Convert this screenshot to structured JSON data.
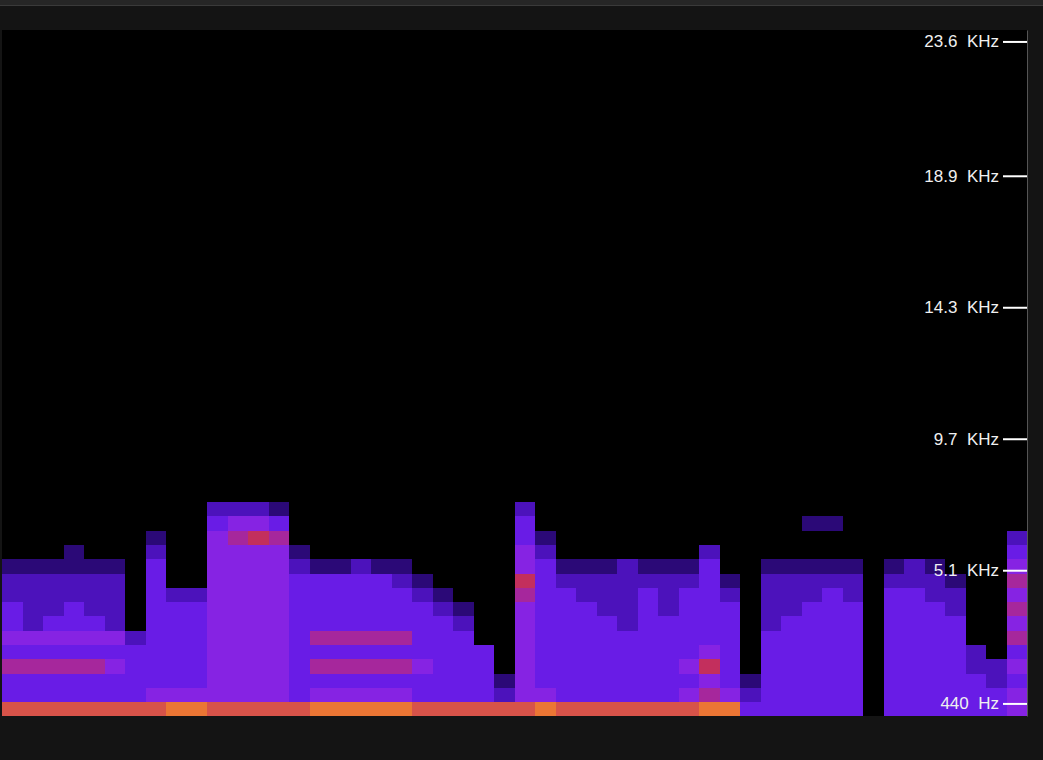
{
  "chart_data": {
    "type": "heatmap",
    "xlim": [
      0,
      50
    ],
    "ylim": [
      0,
      24000
    ],
    "yticks": [
      {
        "value": 23600,
        "label": "23.6  KHz"
      },
      {
        "value": 18900,
        "label": "18.9  KHz"
      },
      {
        "value": 14300,
        "label": "14.3  KHz"
      },
      {
        "value": 9700,
        "label": "9.7  KHz"
      },
      {
        "value": 5100,
        "label": "5.1  KHz"
      },
      {
        "value": 440,
        "label": "440  Hz"
      }
    ],
    "tick_labels": "y",
    "zlim": [
      0,
      9
    ],
    "x_edges": [
      0,
      1,
      2,
      3,
      4,
      5,
      6,
      7,
      8,
      9,
      10,
      11,
      12,
      13,
      14,
      15,
      16,
      17,
      18,
      19,
      20,
      21,
      22,
      23,
      24,
      25,
      26,
      27,
      28,
      29,
      30,
      31,
      32,
      33,
      34,
      35,
      36,
      37,
      38,
      39,
      40,
      41,
      42,
      43,
      44,
      45,
      46,
      47,
      48,
      49,
      50
    ],
    "y_edges": [
      0,
      500,
      1000,
      1500,
      2000,
      2500,
      3000,
      3500,
      4000,
      4500,
      5000,
      5500,
      6000,
      6500,
      7000,
      7500
    ],
    "values": [
      [
        7,
        7,
        7,
        7,
        7,
        7,
        7,
        7,
        8,
        8,
        7,
        7,
        7,
        7,
        7,
        8,
        8,
        8,
        8,
        8,
        7,
        7,
        7,
        7,
        7,
        7,
        8,
        7,
        7,
        7,
        7,
        7,
        7,
        7,
        8,
        8,
        3,
        3,
        3,
        3,
        3,
        3,
        0,
        3,
        3,
        3,
        3,
        3,
        3,
        4
      ],
      [
        3,
        3,
        3,
        3,
        3,
        3,
        3,
        4,
        4,
        4,
        4,
        4,
        4,
        4,
        3,
        4,
        4,
        4,
        4,
        4,
        3,
        3,
        3,
        3,
        2,
        4,
        4,
        3,
        3,
        3,
        3,
        3,
        3,
        4,
        5,
        4,
        2,
        3,
        3,
        3,
        3,
        3,
        0,
        3,
        3,
        3,
        3,
        3,
        3,
        4
      ],
      [
        3,
        3,
        3,
        3,
        3,
        3,
        3,
        3,
        3,
        3,
        4,
        4,
        4,
        4,
        3,
        3,
        3,
        3,
        3,
        3,
        3,
        3,
        3,
        3,
        1,
        4,
        3,
        3,
        3,
        3,
        3,
        3,
        3,
        3,
        4,
        3,
        1,
        3,
        3,
        3,
        3,
        3,
        0,
        3,
        3,
        3,
        3,
        3,
        2,
        3
      ],
      [
        5,
        5,
        5,
        5,
        5,
        4,
        3,
        3,
        3,
        3,
        4,
        4,
        4,
        4,
        3,
        5,
        5,
        5,
        5,
        5,
        4,
        3,
        3,
        3,
        0,
        4,
        3,
        3,
        3,
        3,
        3,
        3,
        3,
        4,
        6,
        3,
        0,
        3,
        3,
        3,
        3,
        3,
        0,
        3,
        3,
        3,
        3,
        2,
        2,
        4
      ],
      [
        3,
        3,
        3,
        3,
        3,
        3,
        3,
        3,
        3,
        3,
        4,
        4,
        4,
        4,
        3,
        3,
        3,
        3,
        3,
        3,
        3,
        3,
        3,
        3,
        0,
        4,
        3,
        3,
        3,
        3,
        3,
        3,
        3,
        3,
        4,
        3,
        0,
        3,
        3,
        3,
        3,
        3,
        0,
        3,
        3,
        3,
        3,
        2,
        0,
        3
      ],
      [
        4,
        4,
        4,
        4,
        4,
        4,
        2,
        3,
        3,
        3,
        4,
        4,
        4,
        4,
        3,
        5,
        5,
        5,
        5,
        5,
        3,
        3,
        3,
        0,
        0,
        4,
        3,
        3,
        3,
        3,
        3,
        3,
        3,
        3,
        3,
        3,
        0,
        3,
        3,
        3,
        3,
        3,
        0,
        3,
        3,
        3,
        3,
        0,
        0,
        5
      ],
      [
        3,
        2,
        3,
        3,
        3,
        2,
        0,
        3,
        3,
        3,
        4,
        4,
        4,
        4,
        3,
        3,
        3,
        3,
        3,
        3,
        3,
        3,
        2,
        0,
        0,
        4,
        3,
        3,
        3,
        3,
        2,
        3,
        3,
        3,
        3,
        3,
        0,
        2,
        3,
        3,
        3,
        3,
        0,
        3,
        3,
        3,
        3,
        0,
        0,
        4
      ],
      [
        3,
        2,
        2,
        3,
        2,
        2,
        0,
        3,
        3,
        3,
        4,
        4,
        4,
        4,
        3,
        3,
        3,
        3,
        3,
        3,
        3,
        2,
        1,
        0,
        0,
        4,
        3,
        3,
        3,
        2,
        2,
        3,
        2,
        3,
        3,
        3,
        0,
        2,
        2,
        3,
        3,
        3,
        0,
        3,
        3,
        3,
        2,
        0,
        0,
        5
      ],
      [
        2,
        2,
        2,
        2,
        2,
        2,
        0,
        3,
        2,
        2,
        4,
        4,
        4,
        4,
        3,
        3,
        3,
        3,
        3,
        3,
        2,
        1,
        0,
        0,
        0,
        5,
        3,
        3,
        2,
        2,
        2,
        3,
        2,
        3,
        3,
        2,
        0,
        2,
        2,
        2,
        3,
        2,
        0,
        3,
        3,
        2,
        2,
        0,
        0,
        4
      ],
      [
        2,
        2,
        2,
        2,
        2,
        2,
        0,
        3,
        0,
        0,
        4,
        4,
        4,
        4,
        3,
        3,
        3,
        3,
        3,
        2,
        1,
        0,
        0,
        0,
        0,
        6,
        3,
        2,
        2,
        2,
        2,
        2,
        2,
        2,
        3,
        1,
        0,
        2,
        2,
        2,
        2,
        2,
        0,
        2,
        2,
        2,
        1,
        0,
        0,
        5
      ],
      [
        1,
        1,
        1,
        1,
        1,
        1,
        0,
        3,
        0,
        0,
        4,
        4,
        4,
        4,
        2,
        1,
        1,
        2,
        1,
        1,
        0,
        0,
        0,
        0,
        0,
        4,
        3,
        1,
        1,
        1,
        2,
        1,
        1,
        1,
        3,
        0,
        0,
        1,
        1,
        1,
        1,
        1,
        0,
        1,
        2,
        1,
        0,
        0,
        0,
        4
      ],
      [
        0,
        0,
        0,
        1,
        0,
        0,
        0,
        2,
        0,
        0,
        4,
        4,
        4,
        4,
        1,
        0,
        0,
        0,
        0,
        0,
        0,
        0,
        0,
        0,
        0,
        4,
        2,
        0,
        0,
        0,
        0,
        0,
        0,
        0,
        2,
        0,
        0,
        0,
        0,
        0,
        0,
        0,
        0,
        0,
        0,
        0,
        0,
        0,
        0,
        3
      ],
      [
        0,
        0,
        0,
        0,
        0,
        0,
        0,
        1,
        0,
        0,
        4,
        5,
        6,
        5,
        0,
        0,
        0,
        0,
        0,
        0,
        0,
        0,
        0,
        0,
        0,
        3,
        1,
        0,
        0,
        0,
        0,
        0,
        0,
        0,
        0,
        0,
        0,
        0,
        0,
        0,
        0,
        0,
        0,
        0,
        0,
        0,
        0,
        0,
        0,
        2
      ],
      [
        0,
        0,
        0,
        0,
        0,
        0,
        0,
        0,
        0,
        0,
        3,
        4,
        4,
        3,
        0,
        0,
        0,
        0,
        0,
        0,
        0,
        0,
        0,
        0,
        0,
        3,
        0,
        0,
        0,
        0,
        0,
        0,
        0,
        0,
        0,
        0,
        0,
        0,
        0,
        1,
        1,
        0,
        0,
        0,
        0,
        0,
        0,
        0,
        0,
        0
      ],
      [
        0,
        0,
        0,
        0,
        0,
        0,
        0,
        0,
        0,
        0,
        2,
        2,
        2,
        1,
        0,
        0,
        0,
        0,
        0,
        0,
        0,
        0,
        0,
        0,
        0,
        2,
        0,
        0,
        0,
        0,
        0,
        0,
        0,
        0,
        0,
        0,
        0,
        0,
        0,
        0,
        0,
        0,
        0,
        0,
        0,
        0,
        0,
        0,
        0,
        0
      ]
    ]
  }
}
